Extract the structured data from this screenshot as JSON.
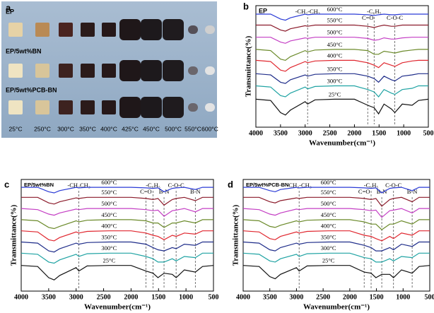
{
  "photo": {
    "label": "a",
    "rows": [
      "EP",
      "EP/5wt%BN",
      "EP/5wt%PCB-BN"
    ],
    "temperatures": [
      "25°C",
      "250°C",
      "300°C",
      "350°C",
      "400°C",
      "425°C",
      "450°C",
      "500°C",
      "550°C",
      "600°C"
    ]
  },
  "chart_data": [
    {
      "type": "line",
      "label": "b",
      "title": "EP",
      "x_label": "Wavenumber(cm⁻¹)",
      "y_label": "Transmittance(%)",
      "x": [
        4000,
        3700,
        3500,
        3400,
        3300,
        3000,
        2950,
        2800,
        2400,
        2000,
        1730,
        1600,
        1510,
        1400,
        1250,
        1180,
        1030,
        830,
        700,
        500
      ],
      "xlim": [
        4000,
        500
      ],
      "xticks": [
        4000,
        3500,
        3000,
        2500,
        2000,
        1500,
        1000,
        500
      ],
      "ylim": [
        0,
        100
      ],
      "annotations": [
        {
          "text": "-CH₂-CH₃",
          "x": 2950
        },
        {
          "text": "C=O",
          "x": 1730
        },
        {
          "text": "-C₆H₅",
          "x": 1600
        },
        {
          "text": "C-O-C",
          "x": 1180
        }
      ],
      "series": [
        {
          "name": "600°C",
          "color": "#2b3bd6",
          "values": [
            93,
            93,
            89,
            88,
            90,
            93,
            92.5,
            93,
            93,
            93,
            92.5,
            92,
            92.5,
            93,
            92.5,
            92.5,
            93,
            93,
            93,
            93
          ]
        },
        {
          "name": "550°C",
          "color": "#8b1a2a",
          "values": [
            84,
            84,
            80,
            79,
            81,
            83.5,
            83,
            84,
            84,
            84,
            83,
            82,
            83,
            84,
            83,
            83,
            84,
            84,
            84,
            84
          ]
        },
        {
          "name": "500°C",
          "color": "#c43fc4",
          "values": [
            74,
            74,
            70,
            69,
            71,
            73.5,
            73,
            74,
            74,
            74,
            73,
            71.5,
            72,
            73.5,
            72.5,
            72.5,
            73.5,
            74,
            74,
            74
          ]
        },
        {
          "name": "450°C",
          "color": "#6b8a2a",
          "values": [
            64,
            63,
            56,
            55,
            58,
            63,
            62,
            63.5,
            64,
            64,
            63,
            60,
            60,
            62.5,
            61.5,
            61,
            62.5,
            63.5,
            64,
            64
          ]
        },
        {
          "name": "400°C",
          "color": "#e0262e",
          "values": [
            55,
            54,
            47,
            46,
            49,
            54,
            53,
            54.5,
            55,
            55,
            53,
            51,
            49,
            53,
            51,
            50,
            53,
            54.5,
            55,
            55
          ]
        },
        {
          "name": "350°C",
          "color": "#1f2d8a",
          "values": [
            44,
            43,
            37,
            36,
            39,
            43,
            42,
            43.5,
            44,
            44,
            42,
            40,
            37,
            42,
            39,
            38,
            42,
            43,
            44,
            44
          ]
        },
        {
          "name": "300°C",
          "color": "#1fa3a3",
          "values": [
            34,
            33,
            26,
            25,
            28,
            33,
            31.5,
            33.5,
            34,
            34,
            31,
            29,
            25,
            31,
            28,
            27,
            31,
            32,
            34,
            34
          ]
        },
        {
          "name": "25°C",
          "color": "#111111",
          "values": [
            23,
            22,
            12,
            10,
            14,
            21,
            19,
            22.5,
            23,
            23,
            18,
            16,
            11,
            19,
            15,
            12,
            19,
            18,
            22,
            23
          ]
        }
      ]
    },
    {
      "type": "line",
      "label": "c",
      "title": "EP/5wt%BN",
      "x_label": "Wavenumber(cm⁻¹)",
      "y_label": "Transmittance(%)",
      "x": [
        4000,
        3700,
        3500,
        3400,
        3300,
        3000,
        2950,
        2800,
        2400,
        2000,
        1730,
        1600,
        1510,
        1400,
        1250,
        1180,
        1030,
        830,
        700,
        500
      ],
      "xlim": [
        4000,
        500
      ],
      "xticks": [
        4000,
        3500,
        3000,
        2500,
        2000,
        1500,
        1000,
        500
      ],
      "ylim": [
        0,
        100
      ],
      "annotations": [
        {
          "text": "-CH₂CH₃",
          "x": 2950
        },
        {
          "text": "C=O",
          "x": 1730
        },
        {
          "text": "-C₆H₅",
          "x": 1600
        },
        {
          "text": "B-N",
          "x": 1400
        },
        {
          "text": "C-O-C",
          "x": 1180
        },
        {
          "text": "B-N",
          "x": 830
        }
      ],
      "series": [
        {
          "name": "600°C",
          "color": "#2b3bd6",
          "values": [
            93,
            93,
            89,
            88,
            90,
            93,
            92.5,
            93,
            93,
            93,
            92.5,
            92,
            92.5,
            89,
            92,
            92.5,
            93,
            91,
            93,
            93
          ]
        },
        {
          "name": "550°C",
          "color": "#8b1a2a",
          "values": [
            84,
            84,
            79,
            78,
            80,
            83.5,
            83,
            84,
            84,
            84,
            83,
            82,
            83,
            77,
            82,
            83,
            84,
            81,
            84,
            84
          ]
        },
        {
          "name": "500°C",
          "color": "#c43fc4",
          "values": [
            74,
            73,
            69,
            68,
            70,
            73.5,
            73,
            74,
            74,
            74,
            73,
            72,
            72.5,
            67,
            72,
            72.5,
            74,
            71,
            74,
            74
          ]
        },
        {
          "name": "450°C",
          "color": "#6b8a2a",
          "values": [
            64,
            63,
            57,
            56,
            58,
            63,
            62,
            63.5,
            64,
            64,
            63,
            61,
            61,
            57,
            61,
            61,
            63,
            61,
            64,
            64
          ]
        },
        {
          "name": "400°C",
          "color": "#e0262e",
          "values": [
            54,
            53,
            46,
            45,
            48,
            53,
            52,
            53.5,
            54,
            54,
            52,
            50,
            49,
            46,
            50,
            49,
            52,
            51,
            54,
            54
          ]
        },
        {
          "name": "350°C",
          "color": "#1f2d8a",
          "values": [
            44,
            43,
            36,
            35,
            38,
            43,
            42,
            43.5,
            44,
            44,
            42,
            39,
            37,
            36,
            39,
            38,
            42,
            41,
            44,
            44
          ]
        },
        {
          "name": "300°C",
          "color": "#1fa3a3",
          "values": [
            34,
            33,
            26,
            25,
            28,
            33,
            31,
            33.5,
            34,
            34,
            31,
            29,
            26,
            26,
            29,
            27,
            31,
            30,
            34,
            34
          ]
        },
        {
          "name": "25°C",
          "color": "#111111",
          "values": [
            23,
            22,
            12,
            10,
            14,
            21,
            18,
            22.5,
            23,
            23,
            18,
            16,
            12,
            16,
            15,
            12,
            19,
            17,
            22,
            23
          ]
        }
      ]
    },
    {
      "type": "line",
      "label": "d",
      "title": "EP/5wt%PCB-BN",
      "x_label": "Wavenumber(cm⁻¹)",
      "y_label": "Transmittance(%)",
      "x": [
        4000,
        3700,
        3500,
        3400,
        3300,
        3000,
        2950,
        2800,
        2400,
        2000,
        1730,
        1600,
        1510,
        1400,
        1250,
        1180,
        1030,
        830,
        700,
        500
      ],
      "xlim": [
        4000,
        500
      ],
      "xticks": [
        4000,
        3500,
        3000,
        2500,
        2000,
        1500,
        1000,
        500
      ],
      "ylim": [
        0,
        100
      ],
      "annotations": [
        {
          "text": "-CH₂-CH₃",
          "x": 2950
        },
        {
          "text": "C=O",
          "x": 1730
        },
        {
          "text": "-C₆H₅",
          "x": 1600
        },
        {
          "text": "B-N",
          "x": 1400
        },
        {
          "text": "C-O-C",
          "x": 1180
        },
        {
          "text": "B-N",
          "x": 830
        }
      ],
      "series": [
        {
          "name": "600°C",
          "color": "#2b3bd6",
          "values": [
            93,
            93,
            90,
            89,
            91,
            93,
            92.5,
            93,
            93,
            93,
            92.5,
            92,
            92.5,
            88,
            92,
            92.5,
            93,
            90,
            93,
            93
          ]
        },
        {
          "name": "550°C",
          "color": "#8b1a2a",
          "values": [
            84,
            84,
            80,
            79,
            81,
            83.5,
            83,
            84,
            84,
            84,
            83,
            82,
            83,
            76,
            82,
            83,
            84,
            80,
            84,
            84
          ]
        },
        {
          "name": "500°C",
          "color": "#c43fc4",
          "values": [
            74,
            73,
            69,
            68,
            70,
            73.5,
            73,
            74,
            74,
            74,
            73,
            72,
            72.5,
            66,
            72,
            72.5,
            74,
            70,
            74,
            74
          ]
        },
        {
          "name": "450°C",
          "color": "#6b8a2a",
          "values": [
            64,
            63,
            58,
            57,
            59,
            63,
            62,
            63.5,
            64,
            64,
            62,
            60,
            60,
            55,
            60,
            60,
            63,
            60,
            64,
            64
          ]
        },
        {
          "name": "400°C",
          "color": "#e0262e",
          "values": [
            54,
            53,
            47,
            46,
            49,
            53,
            52,
            53.5,
            54,
            54,
            50,
            49,
            47,
            45,
            49,
            47,
            52,
            50,
            54,
            54
          ]
        },
        {
          "name": "350°C",
          "color": "#1f2d8a",
          "values": [
            44,
            43,
            37,
            36,
            39,
            43,
            42,
            43.5,
            44,
            44,
            41,
            39,
            36,
            36,
            39,
            37,
            42,
            40,
            44,
            44
          ]
        },
        {
          "name": "300°C",
          "color": "#1fa3a3",
          "values": [
            34,
            33,
            27,
            26,
            29,
            33,
            31,
            33.5,
            34,
            34,
            30,
            29,
            26,
            26,
            29,
            27,
            31,
            30,
            34,
            34
          ]
        },
        {
          "name": "25°C",
          "color": "#111111",
          "values": [
            23,
            22,
            13,
            11,
            15,
            21,
            18,
            22.5,
            23,
            23,
            17,
            16,
            12,
            15,
            15,
            12,
            19,
            16,
            22,
            23
          ]
        }
      ]
    }
  ]
}
